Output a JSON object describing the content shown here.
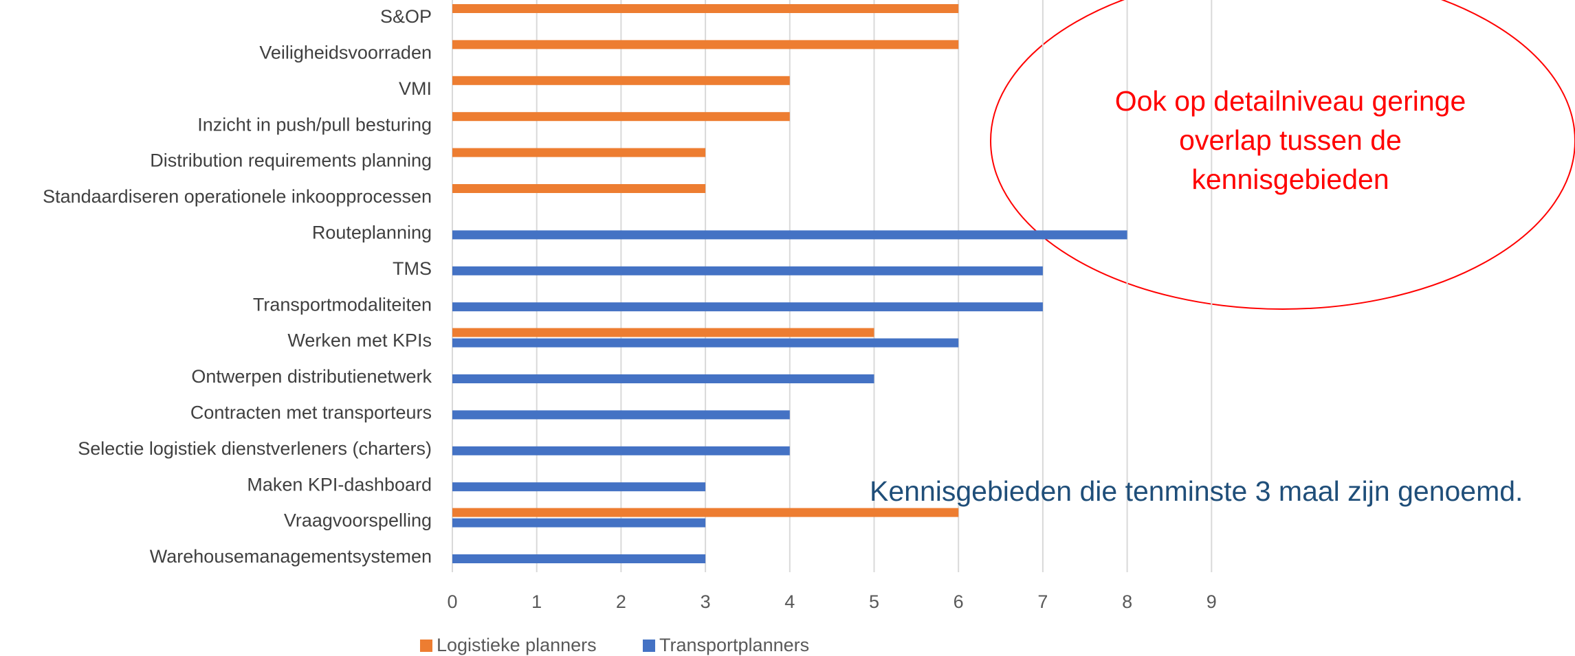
{
  "chart_data": {
    "type": "barh",
    "categories": [
      "S&OP",
      "Veiligheidsvoorraden",
      "VMI",
      "Inzicht in push/pull besturing",
      "Distribution requirements planning",
      "Standaardiseren operationele inkoopprocessen",
      "Routeplanning",
      "TMS",
      "Transportmodaliteiten",
      "Werken met KPIs",
      "Ontwerpen distributienetwerk",
      "Contracten met transporteurs",
      "Selectie logistiek dienstverleners (charters)",
      "Maken KPI-dashboard",
      "Vraagvoorspelling",
      "Warehousemanagementsystemen"
    ],
    "series": [
      {
        "name": "Logistieke planners",
        "color": "#ed7d31",
        "values": [
          6,
          6,
          4,
          4,
          3,
          3,
          null,
          null,
          null,
          5,
          null,
          null,
          null,
          null,
          6,
          null
        ]
      },
      {
        "name": "Transportplanners",
        "color": "#4472c4",
        "values": [
          null,
          null,
          null,
          null,
          null,
          null,
          8,
          7,
          7,
          6,
          5,
          4,
          4,
          3,
          3,
          3
        ]
      }
    ],
    "xlim": [
      0,
      9
    ],
    "xticks": [
      0,
      1,
      2,
      3,
      4,
      5,
      6,
      7,
      8,
      9
    ],
    "grid": true,
    "legend": "bottom",
    "annotations": [
      {
        "lines": [
          "Ook op detailniveau geringe",
          "overlap tussen de",
          "kennisgebieden"
        ],
        "color": "#ff0000"
      },
      {
        "lines": [
          "Kennisgebieden die tenminste 3 maal zijn genoemd."
        ],
        "color": "#1f4e79"
      }
    ]
  }
}
